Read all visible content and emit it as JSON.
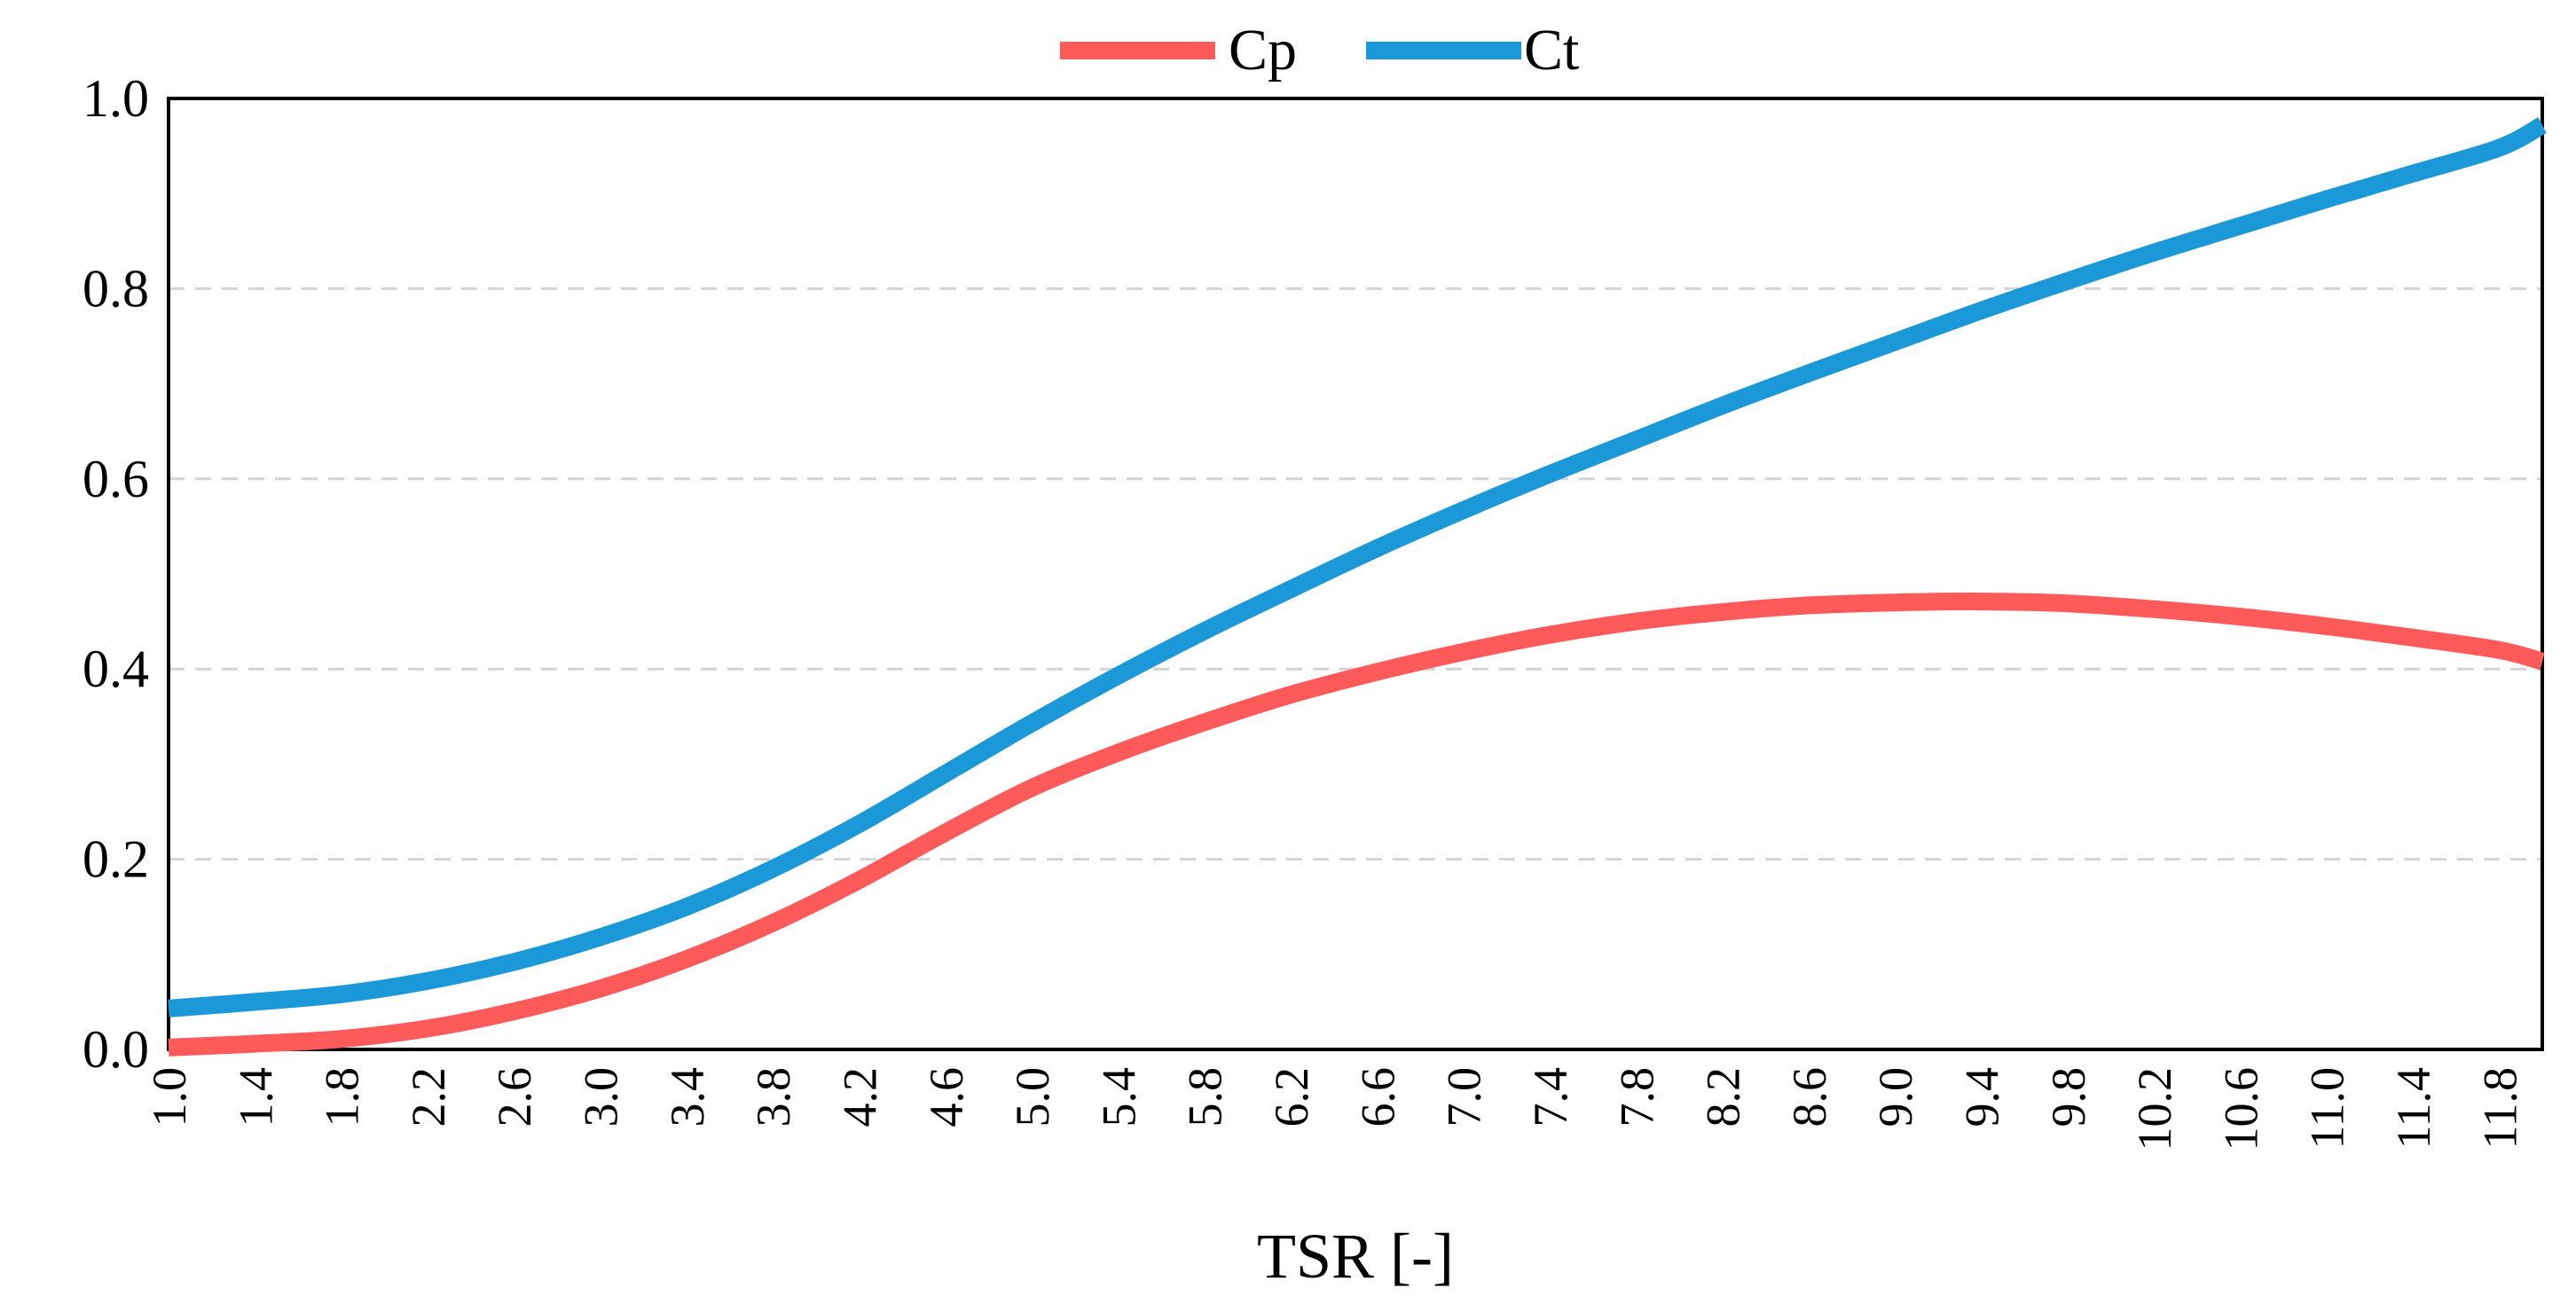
{
  "chart_data": {
    "type": "line",
    "title": "",
    "xlabel": "TSR [-]",
    "ylabel": "",
    "ylim": [
      0,
      1
    ],
    "y_ticks": [
      "0.0",
      "0.2",
      "0.4",
      "0.6",
      "0.8",
      "1.0"
    ],
    "x_tick_labels": [
      "1.0",
      "1.4",
      "1.8",
      "2.2",
      "2.6",
      "3.0",
      "3.4",
      "3.8",
      "4.2",
      "4.6",
      "5.0",
      "5.4",
      "5.8",
      "6.2",
      "6.6",
      "7.0",
      "7.4",
      "7.8",
      "8.2",
      "8.6",
      "9.0",
      "9.4",
      "9.8",
      "10.2",
      "10.6",
      "11.0",
      "11.4",
      "11.8"
    ],
    "x": [
      1.0,
      1.4,
      1.8,
      2.2,
      2.6,
      3.0,
      3.4,
      3.8,
      4.2,
      4.6,
      5.0,
      5.4,
      5.8,
      6.2,
      6.6,
      7.0,
      7.4,
      7.8,
      8.2,
      8.6,
      9.0,
      9.4,
      9.8,
      10.2,
      10.6,
      11.0,
      11.4,
      11.8,
      12.0
    ],
    "xlim": [
      1.0,
      12.0
    ],
    "grid": "horizontal dashed",
    "legend_position": "top-center",
    "series": [
      {
        "name": "Cp",
        "color": "#ff5a5a",
        "values": [
          0.002,
          0.006,
          0.011,
          0.022,
          0.04,
          0.064,
          0.095,
          0.133,
          0.178,
          0.228,
          0.275,
          0.312,
          0.344,
          0.373,
          0.397,
          0.418,
          0.436,
          0.45,
          0.46,
          0.467,
          0.47,
          0.471,
          0.469,
          0.463,
          0.455,
          0.445,
          0.433,
          0.42,
          0.408
        ]
      },
      {
        "name": "Ct",
        "color": "#1b98d8",
        "values": [
          0.043,
          0.05,
          0.058,
          0.072,
          0.092,
          0.118,
          0.15,
          0.19,
          0.237,
          0.29,
          0.343,
          0.393,
          0.44,
          0.484,
          0.527,
          0.567,
          0.605,
          0.641,
          0.677,
          0.711,
          0.744,
          0.777,
          0.808,
          0.838,
          0.866,
          0.894,
          0.921,
          0.948,
          0.972
        ]
      }
    ]
  }
}
